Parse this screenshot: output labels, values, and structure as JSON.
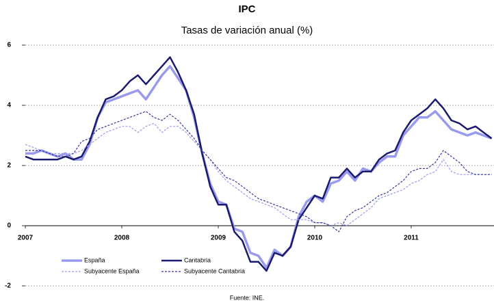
{
  "chart_data": {
    "type": "line",
    "title": "IPC",
    "subtitle": "Tasas de variación anual (%)",
    "source": "Fuente: INE.",
    "categories": [
      "2007",
      null,
      null,
      null,
      null,
      null,
      null,
      null,
      null,
      null,
      null,
      null,
      "2008",
      null,
      null,
      null,
      null,
      null,
      null,
      null,
      null,
      null,
      null,
      null,
      "2009",
      null,
      null,
      null,
      null,
      null,
      null,
      null,
      null,
      null,
      null,
      null,
      "2010",
      null,
      null,
      null,
      null,
      null,
      null,
      null,
      null,
      null,
      null,
      null,
      "2011",
      null,
      null,
      null,
      null,
      null,
      null,
      null,
      null,
      null,
      null
    ],
    "ylim": [
      -2,
      6
    ],
    "yticks": [
      -2,
      0,
      2,
      4,
      6
    ],
    "grid": true,
    "legend": "lower left",
    "series": [
      {
        "name": "España",
        "color": "#9999ee",
        "style": "solid",
        "width": 3.5,
        "values": [
          2.4,
          2.4,
          2.5,
          2.4,
          2.3,
          2.4,
          2.2,
          2.2,
          2.7,
          3.6,
          4.1,
          4.2,
          4.3,
          4.4,
          4.5,
          4.2,
          4.6,
          5.0,
          5.3,
          4.9,
          4.5,
          3.6,
          2.4,
          1.4,
          0.8,
          0.7,
          -0.1,
          -0.2,
          -0.9,
          -1.0,
          -1.4,
          -0.8,
          -1.0,
          -0.7,
          0.3,
          0.8,
          1.0,
          0.8,
          1.4,
          1.5,
          1.8,
          1.5,
          1.9,
          1.8,
          2.1,
          2.3,
          2.3,
          3.0,
          3.3,
          3.6,
          3.6,
          3.8,
          3.5,
          3.2,
          3.1,
          3.0,
          3.1,
          3.0,
          2.9
        ]
      },
      {
        "name": "Cantabria",
        "color": "#1a1a6e",
        "style": "solid",
        "width": 2.5,
        "values": [
          2.3,
          2.2,
          2.2,
          2.2,
          2.2,
          2.3,
          2.2,
          2.3,
          2.8,
          3.6,
          4.2,
          4.3,
          4.5,
          4.8,
          5.0,
          4.7,
          5.0,
          5.3,
          5.6,
          5.1,
          4.5,
          3.7,
          2.4,
          1.3,
          0.7,
          0.7,
          -0.2,
          -0.5,
          -1.2,
          -1.2,
          -1.5,
          -0.9,
          -1.0,
          -0.7,
          0.2,
          0.6,
          1.0,
          0.9,
          1.6,
          1.6,
          1.9,
          1.6,
          1.8,
          1.8,
          2.2,
          2.4,
          2.5,
          3.1,
          3.5,
          3.7,
          3.9,
          4.2,
          3.9,
          3.5,
          3.4,
          3.2,
          3.3,
          3.1,
          2.9
        ]
      },
      {
        "name": "Subyacente España",
        "color": "#9999ee",
        "style": "dashed",
        "width": 1.2,
        "values": [
          2.7,
          2.6,
          2.5,
          2.4,
          2.4,
          2.4,
          2.4,
          2.5,
          2.7,
          2.9,
          3.1,
          3.2,
          3.3,
          3.3,
          3.1,
          3.3,
          3.4,
          3.1,
          3.3,
          3.3,
          3.1,
          2.8,
          2.5,
          2.2,
          1.8,
          1.5,
          1.3,
          1.1,
          0.9,
          0.8,
          0.7,
          0.6,
          0.4,
          0.2,
          0.2,
          0.2,
          0.1,
          0.1,
          0.0,
          0.1,
          0.0,
          0.2,
          0.4,
          0.6,
          0.9,
          1.0,
          1.1,
          1.2,
          1.4,
          1.5,
          1.7,
          1.8,
          2.2,
          1.8,
          1.7,
          1.7,
          1.7,
          1.7,
          1.7
        ]
      },
      {
        "name": "Subyacente Cantabria",
        "color": "#333399",
        "style": "dashed",
        "width": 1.2,
        "values": [
          2.5,
          2.5,
          2.5,
          2.4,
          2.3,
          2.3,
          2.4,
          2.8,
          2.9,
          3.2,
          3.3,
          3.4,
          3.5,
          3.6,
          3.7,
          3.8,
          3.6,
          3.5,
          3.7,
          3.5,
          3.2,
          2.9,
          2.5,
          2.2,
          1.9,
          1.6,
          1.5,
          1.3,
          1.1,
          0.9,
          0.8,
          0.7,
          0.6,
          0.5,
          0.4,
          0.3,
          0.1,
          0.1,
          0.0,
          -0.2,
          0.3,
          0.5,
          0.6,
          0.8,
          1.0,
          1.1,
          1.3,
          1.5,
          1.8,
          1.9,
          1.9,
          2.1,
          2.5,
          2.3,
          2.1,
          1.8,
          1.7,
          1.7,
          1.7
        ]
      }
    ]
  }
}
